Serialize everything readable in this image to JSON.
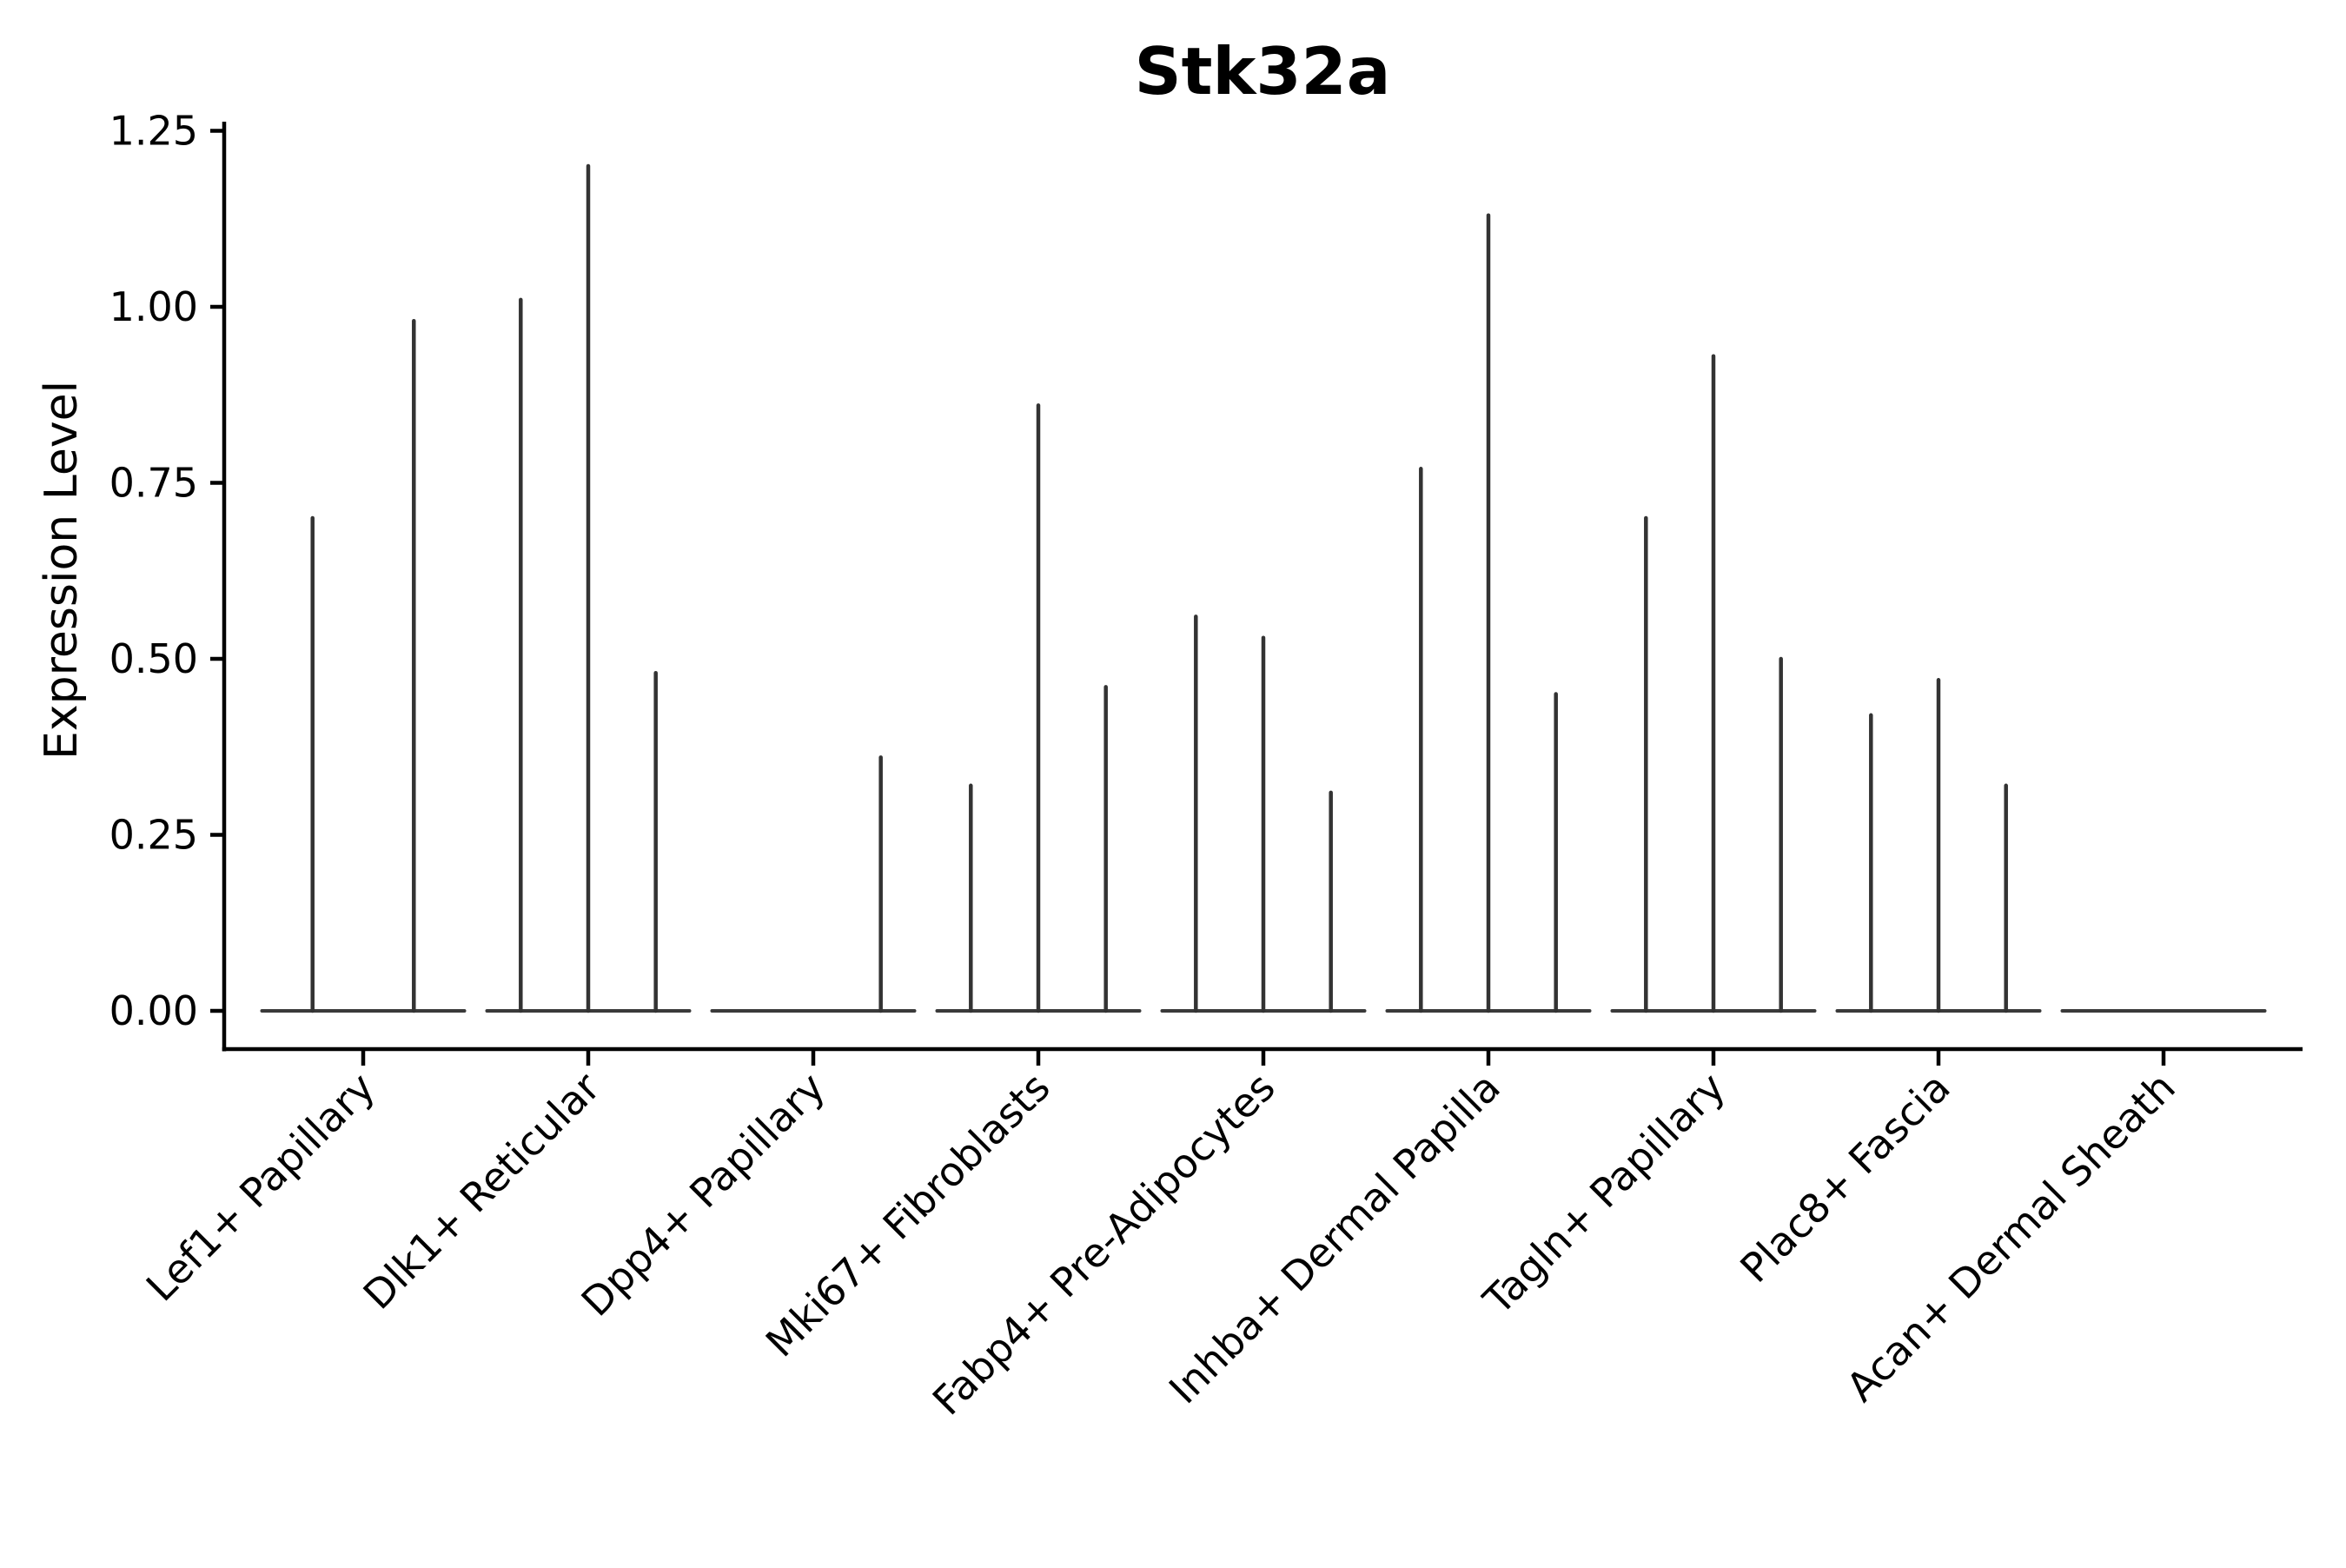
{
  "figure": {
    "background_color": "#ffffff"
  },
  "chart_data": {
    "type": "violin",
    "title": "Stk32a",
    "xlabel": "",
    "ylabel": "Expression Level",
    "ylim": [
      -0.05,
      1.27
    ],
    "yticks": [
      0.0,
      0.25,
      0.5,
      0.75,
      1.0,
      1.25
    ],
    "ytick_labels": [
      "0.00",
      "0.25",
      "0.50",
      "0.75",
      "1.00",
      "1.25"
    ],
    "grid": false,
    "legend_position": "none",
    "x_label_rotation_deg": 45,
    "categories": [
      "Lef1+ Papillary",
      "Dlk1+ Reticular",
      "Dpp4+ Papillary",
      "Mki67+ Fibroblasts",
      "Fabp4+ Pre-Adipocytes",
      "Inhba+ Dermal Papilla",
      "Tagln+ Papillary",
      "Plac8+ Fascia",
      "Acan+ Dermal Sheath"
    ],
    "violins": [
      {
        "category": "Lef1+ Papillary",
        "baseline_at_zero": true,
        "spikes": [
          {
            "offset": -0.225,
            "peak": 0.7
          },
          {
            "offset": 0.225,
            "peak": 0.98
          }
        ]
      },
      {
        "category": "Dlk1+ Reticular",
        "baseline_at_zero": true,
        "spikes": [
          {
            "offset": -0.3,
            "peak": 1.01
          },
          {
            "offset": 0.0,
            "peak": 1.2
          },
          {
            "offset": 0.3,
            "peak": 0.48
          }
        ]
      },
      {
        "category": "Dpp4+ Papillary",
        "baseline_at_zero": true,
        "spikes": [
          {
            "offset": 0.3,
            "peak": 0.36
          }
        ]
      },
      {
        "category": "Mki67+ Fibroblasts",
        "baseline_at_zero": true,
        "spikes": [
          {
            "offset": -0.3,
            "peak": 0.32
          },
          {
            "offset": 0.0,
            "peak": 0.86
          },
          {
            "offset": 0.3,
            "peak": 0.46
          }
        ]
      },
      {
        "category": "Fabp4+ Pre-Adipocytes",
        "baseline_at_zero": true,
        "spikes": [
          {
            "offset": -0.3,
            "peak": 0.56
          },
          {
            "offset": 0.0,
            "peak": 0.53
          },
          {
            "offset": 0.3,
            "peak": 0.31
          }
        ]
      },
      {
        "category": "Inhba+ Dermal Papilla",
        "baseline_at_zero": true,
        "spikes": [
          {
            "offset": -0.3,
            "peak": 0.77
          },
          {
            "offset": 0.0,
            "peak": 1.13
          },
          {
            "offset": 0.3,
            "peak": 0.45
          }
        ]
      },
      {
        "category": "Tagln+ Papillary",
        "baseline_at_zero": true,
        "spikes": [
          {
            "offset": -0.3,
            "peak": 0.7
          },
          {
            "offset": 0.0,
            "peak": 0.93
          },
          {
            "offset": 0.3,
            "peak": 0.5
          }
        ]
      },
      {
        "category": "Plac8+ Fascia",
        "baseline_at_zero": true,
        "spikes": [
          {
            "offset": -0.3,
            "peak": 0.42
          },
          {
            "offset": 0.0,
            "peak": 0.47
          },
          {
            "offset": 0.3,
            "peak": 0.32
          }
        ]
      },
      {
        "category": "Acan+ Dermal Sheath",
        "baseline_at_zero": true,
        "spikes": []
      }
    ],
    "colors": {
      "violin_line": "#333333",
      "baseline_line": "#3a3a3a",
      "axis": "#000000",
      "text": "#000000",
      "background": "#ffffff"
    }
  }
}
